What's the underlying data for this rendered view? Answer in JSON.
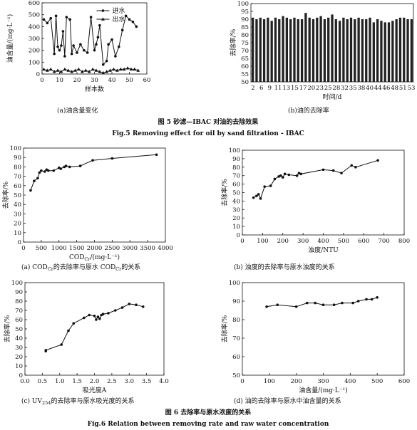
{
  "captions": {
    "a": "(a)油含量变化",
    "b": "(b)油的去除率",
    "c": "(a) COD",
    "d": "(b) 浊度的去除率与原水浊度的关系",
    "e": "(c) UV",
    "f": "(d) 油的去除率与原水中油含量的关系"
  },
  "captions_parts": {
    "c_sub": "Cr",
    "c_mid": "的去除率与原水 COD",
    "c_tail": "的关系",
    "e_sub": "254",
    "e_tail": "的去除率与原水吸光度的关系"
  },
  "fig5": {
    "title_cn": "图 5   砂滤—IBAC 对油的去除效果",
    "title_en": "Fig.5   Removing effect for oil by sand filtration - IBAC"
  },
  "fig6": {
    "title_cn": "图 6   去除率与原水浓度的关系",
    "title_en": "Fig.6   Relation between removing rate and raw water concentration"
  },
  "chart_data": [
    {
      "id": "a",
      "type": "line",
      "xlabel": "样本数",
      "ylabel": "油含量/(mg·L⁻¹)",
      "xlim": [
        0,
        60
      ],
      "ylim": [
        0,
        600
      ],
      "xticks": [
        0,
        10,
        20,
        30,
        40,
        50,
        60
      ],
      "yticks": [
        0,
        100,
        200,
        300,
        400,
        500,
        600
      ],
      "legend": "top-right",
      "series": [
        {
          "name": "进水",
          "marker": "circle",
          "x": [
            1,
            3,
            5,
            7,
            8,
            9,
            10,
            11,
            12,
            13,
            14,
            16,
            17,
            18,
            20,
            22,
            24,
            26,
            28,
            30,
            31,
            32,
            33,
            35,
            37,
            38,
            40,
            42,
            44,
            46,
            48,
            50,
            52,
            54
          ],
          "y": [
            460,
            430,
            470,
            170,
            490,
            230,
            200,
            240,
            360,
            150,
            480,
            460,
            170,
            240,
            180,
            250,
            200,
            180,
            480,
            200,
            250,
            310,
            410,
            80,
            110,
            250,
            290,
            150,
            230,
            370,
            490,
            460,
            440,
            400
          ]
        },
        {
          "name": "出水",
          "marker": "triangle",
          "x": [
            1,
            3,
            5,
            7,
            9,
            11,
            13,
            15,
            17,
            19,
            21,
            23,
            25,
            27,
            29,
            31,
            33,
            35,
            37,
            39,
            41,
            43,
            45,
            47,
            49,
            51,
            53,
            55
          ],
          "y": [
            40,
            30,
            40,
            20,
            30,
            20,
            40,
            30,
            20,
            30,
            40,
            20,
            30,
            20,
            40,
            30,
            20,
            10,
            20,
            30,
            40,
            30,
            40,
            40,
            50,
            40,
            40,
            30
          ]
        }
      ]
    },
    {
      "id": "b",
      "type": "bar",
      "xlabel": "时间/d",
      "ylabel": "去除率/%",
      "ylim": [
        50,
        100
      ],
      "yticks": [
        50,
        55,
        60,
        65,
        70,
        75,
        80,
        85,
        90,
        95,
        100
      ],
      "xtick_labels": [
        "2",
        "6",
        "9",
        "11",
        "13",
        "15",
        "17",
        "20",
        "23",
        "25",
        "28",
        "32",
        "35",
        "38",
        "40",
        "44",
        "46",
        "48",
        "51",
        "53"
      ],
      "values": [
        91,
        90,
        91,
        90,
        91,
        89,
        91,
        90,
        92,
        91,
        90,
        91,
        90,
        90,
        94,
        91,
        90,
        91,
        92,
        90,
        91,
        93,
        90,
        89,
        91,
        90,
        91,
        90,
        91,
        90,
        90,
        91,
        88,
        90,
        89,
        88,
        88,
        89,
        90,
        91,
        91,
        90,
        90
      ]
    },
    {
      "id": "c",
      "type": "line",
      "xlabel": "COD",
      "xlabel_sub": "Cr",
      "xlabel_tail": "/(mg·L⁻¹)",
      "ylabel": "去除率/%",
      "xlim": [
        0,
        4000
      ],
      "ylim": [
        0,
        100
      ],
      "xticks": [
        0,
        500,
        1000,
        1500,
        2000,
        2500,
        3000,
        3500,
        4000
      ],
      "yticks": [
        0,
        10,
        20,
        30,
        40,
        50,
        60,
        70,
        80,
        90,
        100
      ],
      "series": [
        {
          "x": [
            200,
            300,
            400,
            450,
            500,
            600,
            650,
            700,
            850,
            1000,
            1050,
            1150,
            1200,
            1300,
            1600,
            1950,
            2500,
            3750
          ],
          "y": [
            55,
            65,
            68,
            74,
            76,
            75,
            77,
            76,
            76,
            79,
            78,
            80,
            81,
            80,
            81,
            87,
            89,
            93
          ]
        }
      ]
    },
    {
      "id": "d",
      "type": "line",
      "xlabel": "浊度/NTU",
      "ylabel": "去除率/%",
      "xlim": [
        0,
        800
      ],
      "ylim": [
        0,
        100
      ],
      "xticks": [
        0,
        100,
        200,
        300,
        400,
        500,
        600,
        700,
        800
      ],
      "yticks": [
        0,
        10,
        20,
        30,
        40,
        50,
        60,
        70,
        80,
        90,
        100
      ],
      "series": [
        {
          "x": [
            55,
            70,
            80,
            90,
            110,
            140,
            160,
            180,
            190,
            200,
            210,
            230,
            270,
            280,
            290,
            400,
            450,
            490,
            540,
            560,
            670
          ],
          "y": [
            44,
            46,
            48,
            43,
            57,
            58,
            66,
            69,
            70,
            68,
            72,
            71,
            70,
            73,
            72,
            77,
            76,
            73,
            82,
            80,
            88
          ]
        }
      ]
    },
    {
      "id": "e",
      "type": "line",
      "xlabel": "吸光度A",
      "ylabel": "去除率/%",
      "xlim": [
        0,
        4
      ],
      "ylim": [
        0,
        100
      ],
      "xticks": [
        0.0,
        0.5,
        1.0,
        1.5,
        2.0,
        2.5,
        3.0,
        3.5,
        4.0
      ],
      "xtick_labels": [
        "0.0",
        "0.5",
        "1.0",
        "1.5",
        "2.0",
        "2.5",
        "3.0",
        "3.5",
        "4.0"
      ],
      "yticks": [
        0,
        10,
        20,
        30,
        40,
        50,
        60,
        70,
        80,
        90,
        100
      ],
      "series": [
        {
          "x": [
            0.6,
            0.6,
            1.05,
            1.25,
            1.4,
            1.7,
            1.85,
            2.0,
            2.05,
            2.1,
            2.15,
            2.2,
            2.25,
            2.4,
            2.6,
            2.8,
            3.0,
            3.2,
            3.4
          ],
          "y": [
            26,
            27,
            33,
            48,
            56,
            62,
            65,
            64,
            60,
            63,
            61,
            65,
            66,
            67,
            70,
            73,
            77,
            76,
            74
          ]
        }
      ]
    },
    {
      "id": "f",
      "type": "line",
      "xlabel": "油含量/(mg·L⁻¹)",
      "ylabel": "去除率/%",
      "xlim": [
        0,
        600
      ],
      "ylim": [
        50,
        100
      ],
      "xticks": [
        0,
        100,
        200,
        300,
        400,
        500,
        600
      ],
      "yticks": [
        50,
        60,
        70,
        80,
        90,
        100
      ],
      "series": [
        {
          "x": [
            90,
            130,
            200,
            240,
            270,
            300,
            340,
            370,
            410,
            430,
            460,
            480,
            500
          ],
          "y": [
            87,
            88,
            87,
            89,
            89,
            88,
            88,
            89,
            89,
            90,
            91,
            91,
            92
          ]
        }
      ]
    }
  ]
}
